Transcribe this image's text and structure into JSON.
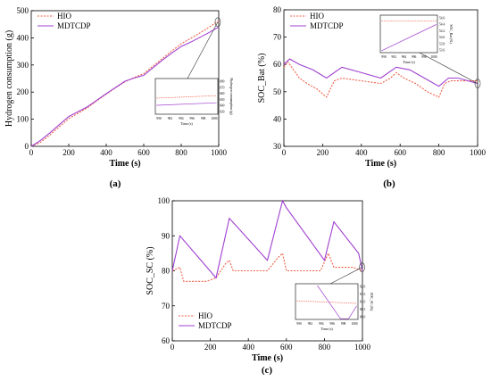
{
  "colors": {
    "hio": "#f06048",
    "mdtcdp": "#a040d0",
    "axis": "#000000",
    "connector": "#333333"
  },
  "chart_data": [
    {
      "panel": "(a)",
      "type": "line",
      "xlabel": "Time (s)",
      "ylabel": "Hydrogen consumption (g)",
      "xlim": [
        0,
        1000
      ],
      "ylim": [
        0,
        500
      ],
      "xticks": [
        "0",
        "200",
        "400",
        "600",
        "800",
        "1000"
      ],
      "yticks": [
        "0",
        "100",
        "200",
        "300",
        "400",
        "500"
      ],
      "legend": [
        "HIO",
        "MDTCDP"
      ],
      "legend_position": "top-left",
      "series": [
        {
          "name": "HIO",
          "style": "dotted",
          "x": [
            0,
            50,
            100,
            150,
            200,
            250,
            300,
            350,
            400,
            450,
            500,
            550,
            600,
            650,
            700,
            750,
            800,
            850,
            900,
            950,
            1000
          ],
          "y": [
            0,
            15,
            42,
            72,
            102,
            122,
            142,
            168,
            192,
            216,
            238,
            254,
            268,
            296,
            324,
            352,
            378,
            398,
            418,
            440,
            462
          ]
        },
        {
          "name": "MDTCDP",
          "style": "solid",
          "x": [
            0,
            50,
            100,
            150,
            200,
            250,
            300,
            350,
            400,
            450,
            500,
            550,
            600,
            650,
            700,
            750,
            800,
            850,
            900,
            950,
            1000
          ],
          "y": [
            0,
            22,
            50,
            80,
            110,
            128,
            146,
            170,
            194,
            217,
            240,
            252,
            262,
            290,
            318,
            344,
            368,
            384,
            402,
            420,
            440
          ]
        }
      ],
      "inset": {
        "xlabel": "Time (s)",
        "ylabel": "Hydrogen consumption (g)",
        "xticks": [
          "990",
          "992",
          "994",
          "996",
          "998",
          "1000"
        ],
        "yticks": [
          "680",
          "670",
          "660",
          "650",
          "640",
          "630"
        ]
      }
    },
    {
      "panel": "(b)",
      "type": "line",
      "xlabel": "Time (s)",
      "ylabel": "SOC_Bat (%)",
      "xlim": [
        0,
        1000
      ],
      "ylim": [
        30,
        80
      ],
      "xticks": [
        "0",
        "200",
        "400",
        "600",
        "800",
        "1000"
      ],
      "yticks": [
        "30",
        "40",
        "50",
        "60",
        "70",
        "80"
      ],
      "legend": [
        "HIO",
        "MDTCDP"
      ],
      "legend_position": "top-left",
      "series": [
        {
          "name": "HIO",
          "style": "dotted",
          "x": [
            0,
            20,
            50,
            80,
            120,
            170,
            220,
            260,
            300,
            400,
            500,
            550,
            580,
            620,
            680,
            740,
            800,
            830,
            860,
            900,
            1000
          ],
          "y": [
            59,
            61,
            58,
            55,
            53,
            51,
            48,
            54,
            55,
            54,
            53,
            55,
            57,
            55,
            53,
            50,
            48,
            53,
            54,
            54,
            54
          ]
        },
        {
          "name": "MDTCDP",
          "style": "solid",
          "x": [
            0,
            30,
            80,
            150,
            220,
            300,
            400,
            500,
            580,
            650,
            700,
            800,
            850,
            900,
            1000
          ],
          "y": [
            60,
            62,
            60,
            58,
            55,
            59,
            57,
            55,
            59,
            58,
            56,
            52,
            55,
            55,
            53
          ]
        }
      ],
      "inset": {
        "xlabel": "Time (s)",
        "ylabel": "SOC_Bat (%)",
        "xticks": [
          "990",
          "992",
          "994",
          "996",
          "998",
          "1000"
        ],
        "yticks": [
          "54.6",
          "54.4",
          "54.2",
          "54.0",
          "53.8",
          "53.6"
        ]
      }
    },
    {
      "panel": "(c)",
      "type": "line",
      "xlabel": "Time (s)",
      "ylabel": "SOC_SC (%)",
      "xlim": [
        0,
        1000
      ],
      "ylim": [
        60,
        100
      ],
      "xticks": [
        "0",
        "200",
        "400",
        "600",
        "800",
        "1000"
      ],
      "yticks": [
        "60",
        "70",
        "80",
        "90",
        "100"
      ],
      "legend": [
        "HIO",
        "MDTCDP"
      ],
      "legend_position": "bottom-left",
      "series": [
        {
          "name": "HIO",
          "style": "dotted",
          "x": [
            0,
            40,
            60,
            120,
            180,
            230,
            280,
            300,
            320,
            400,
            500,
            560,
            580,
            600,
            700,
            780,
            820,
            850,
            880,
            950,
            1000
          ],
          "y": [
            80,
            81,
            77,
            77,
            77,
            78,
            82,
            83,
            80,
            80,
            80,
            84,
            85,
            80,
            80,
            80,
            85,
            81,
            81,
            81,
            80
          ]
        },
        {
          "name": "MDTCDP",
          "style": "solid",
          "x": [
            0,
            40,
            230,
            300,
            500,
            580,
            600,
            800,
            850,
            980,
            1000
          ],
          "y": [
            80,
            90,
            78,
            95,
            83,
            100,
            98,
            83,
            94,
            85,
            80
          ]
        }
      ],
      "inset": {
        "xlabel": "Time (s)",
        "ylabel": "SOC_SC (%)",
        "xticks": [
          "990",
          "992",
          "994",
          "996",
          "998",
          "1000"
        ],
        "yticks": [
          "82.0",
          "81.5",
          "81.0",
          "80.5",
          "80.0"
        ]
      }
    }
  ]
}
